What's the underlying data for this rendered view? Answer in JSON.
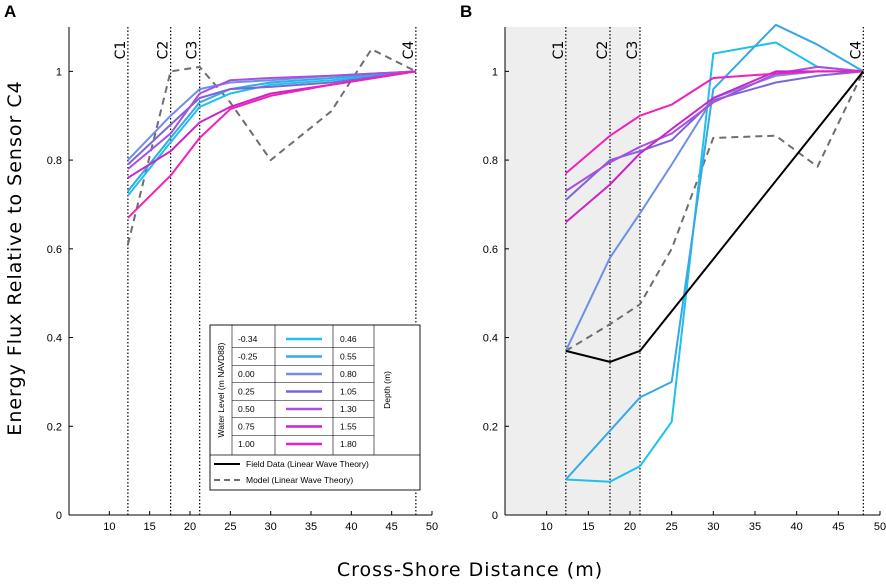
{
  "figure": {
    "ylabel": "Energy Flux Relative to Sensor C4",
    "xlabel": "Cross-Shore Distance (m)"
  },
  "colors": {
    "-0.34": "#1ec1ec",
    "-0.25": "#36a8e6",
    "0.00": "#6f8fe6",
    "0.25": "#7b66d9",
    "0.50": "#a94ee0",
    "0.75": "#cc22cc",
    "1.00": "#ee22bb",
    "field": "#000000",
    "model": "#6e6e6e",
    "shade": "#eeeeee"
  },
  "legend": {
    "water_level_title": "Water Level (m NAVD88)",
    "depth_title": "Depth (m)",
    "rows": [
      {
        "level": "-0.34",
        "depth": "0.46"
      },
      {
        "level": "-0.25",
        "depth": "0.55"
      },
      {
        "level": "0.00",
        "depth": "0.80"
      },
      {
        "level": "0.25",
        "depth": "1.05"
      },
      {
        "level": "0.50",
        "depth": "1.30"
      },
      {
        "level": "0.75",
        "depth": "1.55"
      },
      {
        "level": "1.00",
        "depth": "1.80"
      }
    ],
    "field_label": "Field Data (Linear Wave Theory)",
    "model_label": "Model (Linear Wave Theory)"
  },
  "chart_data": [
    {
      "panel": "A",
      "type": "line",
      "xlim": [
        5,
        50
      ],
      "ylim": [
        0,
        1.1
      ],
      "xticks": [
        10,
        15,
        20,
        25,
        30,
        35,
        40,
        45,
        50
      ],
      "yticks": [
        0,
        0.2,
        0.4,
        0.6,
        0.8,
        1
      ],
      "sensors": [
        {
          "name": "C1",
          "x": 12.3
        },
        {
          "name": "C2",
          "x": 17.6
        },
        {
          "name": "C3",
          "x": 21.2
        },
        {
          "name": "C4",
          "x": 48
        }
      ],
      "shaded": false,
      "series": [
        {
          "name": "-0.34",
          "x": [
            12.3,
            17.6,
            21.2,
            25,
            30,
            37.5,
            48
          ],
          "y": [
            0.72,
            0.84,
            0.92,
            0.95,
            0.97,
            0.98,
            1.0
          ]
        },
        {
          "name": "-0.25",
          "x": [
            12.3,
            17.6,
            21.2,
            25,
            30,
            37.5,
            48
          ],
          "y": [
            0.73,
            0.85,
            0.93,
            0.96,
            0.975,
            0.985,
            1.0
          ]
        },
        {
          "name": "0.00",
          "x": [
            12.3,
            17.6,
            21.2,
            25,
            30,
            37.5,
            48
          ],
          "y": [
            0.8,
            0.9,
            0.96,
            0.975,
            0.98,
            0.99,
            1.0
          ]
        },
        {
          "name": "0.25",
          "x": [
            12.3,
            17.6,
            21.2,
            25,
            30,
            37.5,
            48
          ],
          "y": [
            0.79,
            0.88,
            0.94,
            0.96,
            0.965,
            0.975,
            1.0
          ]
        },
        {
          "name": "0.50",
          "x": [
            12.3,
            17.6,
            21.2,
            25,
            30,
            37.5,
            48
          ],
          "y": [
            0.78,
            0.86,
            0.95,
            0.98,
            0.985,
            0.99,
            1.0
          ]
        },
        {
          "name": "0.75",
          "x": [
            12.3,
            17.6,
            21.2,
            25,
            30,
            37.5,
            48
          ],
          "y": [
            0.76,
            0.82,
            0.885,
            0.92,
            0.95,
            0.97,
            1.0
          ]
        },
        {
          "name": "1.00",
          "x": [
            12.3,
            17.6,
            21.2,
            25,
            30,
            37.5,
            48
          ],
          "y": [
            0.67,
            0.765,
            0.85,
            0.915,
            0.945,
            0.97,
            1.0
          ]
        },
        {
          "name": "Model",
          "x": [
            12.3,
            17.6,
            21.2,
            25,
            30,
            37.5,
            42.5,
            48
          ],
          "y": [
            0.61,
            1.0,
            1.01,
            0.93,
            0.8,
            0.91,
            1.05,
            1.0
          ]
        }
      ]
    },
    {
      "panel": "B",
      "type": "line",
      "xlim": [
        5,
        50
      ],
      "ylim": [
        0,
        1.1
      ],
      "xticks": [
        10,
        15,
        20,
        25,
        30,
        35,
        40,
        45,
        50
      ],
      "yticks": [
        0,
        0.2,
        0.4,
        0.6,
        0.8,
        1
      ],
      "sensors": [
        {
          "name": "C1",
          "x": 12.3
        },
        {
          "name": "C2",
          "x": 17.6
        },
        {
          "name": "C3",
          "x": 21.2
        },
        {
          "name": "C4",
          "x": 48
        }
      ],
      "shaded": true,
      "series": [
        {
          "name": "-0.34",
          "x": [
            12.3,
            17.6,
            21.2,
            25,
            30,
            37.5,
            42.5,
            48
          ],
          "y": [
            0.08,
            0.075,
            0.11,
            0.21,
            1.04,
            1.065,
            1.01,
            1.0
          ]
        },
        {
          "name": "-0.25",
          "x": [
            12.3,
            17.6,
            21.2,
            25,
            30,
            37.5,
            42.5,
            48
          ],
          "y": [
            0.08,
            0.19,
            0.265,
            0.3,
            0.96,
            1.105,
            1.06,
            1.0
          ]
        },
        {
          "name": "0.00",
          "x": [
            12.3,
            17.6,
            21.2,
            25,
            30,
            37.5,
            42.5,
            48
          ],
          "y": [
            0.37,
            0.58,
            0.68,
            0.79,
            0.94,
            0.99,
            1.0,
            1.0
          ]
        },
        {
          "name": "0.25",
          "x": [
            12.3,
            17.6,
            21.2,
            25,
            30,
            37.5,
            42.5,
            48
          ],
          "y": [
            0.71,
            0.8,
            0.82,
            0.845,
            0.935,
            0.975,
            0.99,
            1.0
          ]
        },
        {
          "name": "0.50",
          "x": [
            12.3,
            17.6,
            21.2,
            25,
            30,
            37.5,
            42.5,
            48
          ],
          "y": [
            0.73,
            0.795,
            0.83,
            0.86,
            0.93,
            0.995,
            1.01,
            1.0
          ]
        },
        {
          "name": "0.75",
          "x": [
            12.3,
            17.6,
            21.2,
            25,
            30,
            37.5,
            42.5,
            48
          ],
          "y": [
            0.66,
            0.745,
            0.815,
            0.87,
            0.94,
            1.0,
            1.0,
            1.0
          ]
        },
        {
          "name": "1.00",
          "x": [
            12.3,
            17.6,
            21.2,
            25,
            30,
            37.5,
            42.5,
            48
          ],
          "y": [
            0.77,
            0.855,
            0.9,
            0.925,
            0.985,
            0.995,
            1.0,
            1.0
          ]
        },
        {
          "name": "Field",
          "x": [
            12.3,
            17.6,
            21.2,
            48
          ],
          "y": [
            0.37,
            0.345,
            0.37,
            1.0
          ]
        },
        {
          "name": "Model",
          "x": [
            12.3,
            17.6,
            21.2,
            25,
            30,
            37.5,
            42.5,
            48
          ],
          "y": [
            0.37,
            0.43,
            0.475,
            0.6,
            0.85,
            0.855,
            0.785,
            1.0
          ]
        }
      ]
    }
  ]
}
